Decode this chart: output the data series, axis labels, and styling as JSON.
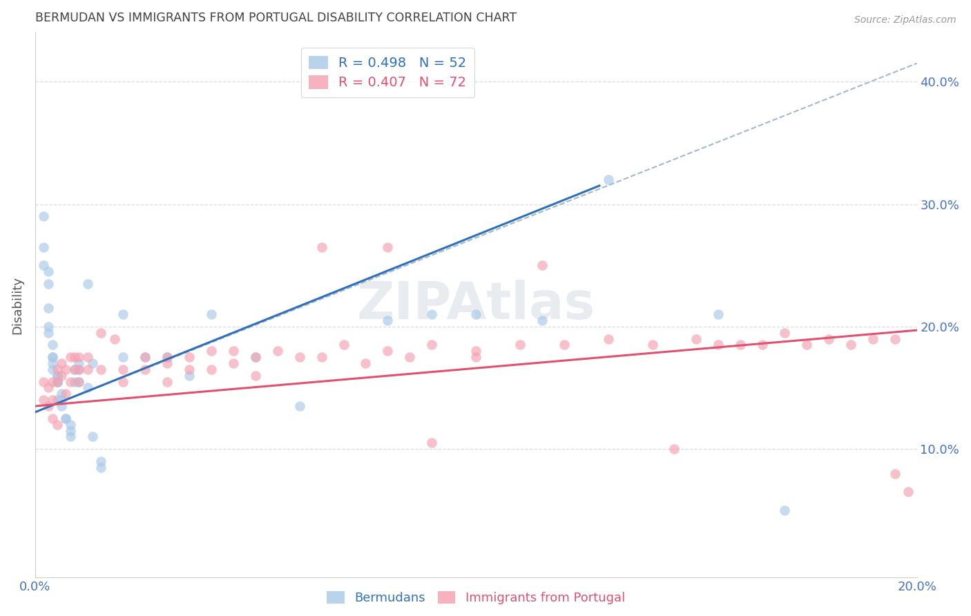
{
  "title": "BERMUDAN VS IMMIGRANTS FROM PORTUGAL DISABILITY CORRELATION CHART",
  "source": "Source: ZipAtlas.com",
  "ylabel": "Disability",
  "x_min": 0.0,
  "x_max": 0.2,
  "y_min": -0.005,
  "y_max": 0.44,
  "y_ticks": [
    0.1,
    0.2,
    0.3,
    0.4
  ],
  "y_tick_labels": [
    "10.0%",
    "20.0%",
    "30.0%",
    "40.0%"
  ],
  "x_ticks": [
    0.0,
    0.04,
    0.08,
    0.12,
    0.16,
    0.2
  ],
  "x_tick_labels": [
    "0.0%",
    "",
    "",
    "",
    "",
    "20.0%"
  ],
  "blue_color": "#a8c8e8",
  "pink_color": "#f4a0b0",
  "blue_line_color": "#3070b8",
  "pink_line_color": "#e05070",
  "dashed_line_color": "#a0b8d0",
  "grid_color": "#d8dde8",
  "title_color": "#404040",
  "tick_color": "#4472c4",
  "blue_scatter_x": [
    0.002,
    0.002,
    0.002,
    0.003,
    0.003,
    0.003,
    0.003,
    0.003,
    0.004,
    0.004,
    0.004,
    0.004,
    0.004,
    0.005,
    0.005,
    0.005,
    0.005,
    0.005,
    0.006,
    0.006,
    0.006,
    0.007,
    0.007,
    0.008,
    0.008,
    0.008,
    0.009,
    0.009,
    0.01,
    0.01,
    0.01,
    0.012,
    0.012,
    0.013,
    0.013,
    0.015,
    0.015,
    0.02,
    0.02,
    0.025,
    0.03,
    0.035,
    0.04,
    0.05,
    0.06,
    0.08,
    0.09,
    0.1,
    0.115,
    0.13,
    0.155,
    0.17
  ],
  "blue_scatter_y": [
    0.29,
    0.265,
    0.25,
    0.245,
    0.235,
    0.215,
    0.2,
    0.195,
    0.185,
    0.175,
    0.175,
    0.17,
    0.165,
    0.16,
    0.16,
    0.155,
    0.155,
    0.14,
    0.145,
    0.14,
    0.135,
    0.125,
    0.125,
    0.12,
    0.115,
    0.11,
    0.165,
    0.155,
    0.17,
    0.165,
    0.155,
    0.235,
    0.15,
    0.17,
    0.11,
    0.09,
    0.085,
    0.175,
    0.21,
    0.175,
    0.175,
    0.16,
    0.21,
    0.175,
    0.135,
    0.205,
    0.21,
    0.21,
    0.205,
    0.32,
    0.21,
    0.05
  ],
  "pink_scatter_x": [
    0.002,
    0.002,
    0.003,
    0.003,
    0.004,
    0.004,
    0.004,
    0.005,
    0.005,
    0.005,
    0.006,
    0.006,
    0.007,
    0.007,
    0.008,
    0.008,
    0.009,
    0.009,
    0.01,
    0.01,
    0.01,
    0.012,
    0.012,
    0.015,
    0.015,
    0.018,
    0.02,
    0.02,
    0.025,
    0.025,
    0.03,
    0.03,
    0.03,
    0.035,
    0.035,
    0.04,
    0.04,
    0.045,
    0.045,
    0.05,
    0.05,
    0.055,
    0.06,
    0.065,
    0.065,
    0.07,
    0.075,
    0.08,
    0.08,
    0.085,
    0.09,
    0.09,
    0.1,
    0.1,
    0.11,
    0.115,
    0.12,
    0.13,
    0.14,
    0.145,
    0.15,
    0.155,
    0.16,
    0.165,
    0.17,
    0.175,
    0.18,
    0.185,
    0.19,
    0.195,
    0.195,
    0.198
  ],
  "pink_scatter_y": [
    0.155,
    0.14,
    0.15,
    0.135,
    0.155,
    0.14,
    0.125,
    0.165,
    0.155,
    0.12,
    0.17,
    0.16,
    0.165,
    0.145,
    0.175,
    0.155,
    0.175,
    0.165,
    0.175,
    0.165,
    0.155,
    0.175,
    0.165,
    0.195,
    0.165,
    0.19,
    0.165,
    0.155,
    0.175,
    0.165,
    0.175,
    0.17,
    0.155,
    0.175,
    0.165,
    0.18,
    0.165,
    0.18,
    0.17,
    0.175,
    0.16,
    0.18,
    0.175,
    0.265,
    0.175,
    0.185,
    0.17,
    0.18,
    0.265,
    0.175,
    0.185,
    0.105,
    0.18,
    0.175,
    0.185,
    0.25,
    0.185,
    0.19,
    0.185,
    0.1,
    0.19,
    0.185,
    0.185,
    0.185,
    0.195,
    0.185,
    0.19,
    0.185,
    0.19,
    0.19,
    0.08,
    0.065
  ],
  "blue_line_x": [
    0.0,
    0.128
  ],
  "blue_line_y": [
    0.13,
    0.315
  ],
  "dashed_line_x": [
    0.0,
    0.2
  ],
  "dashed_line_y": [
    0.13,
    0.415
  ],
  "pink_line_x": [
    0.0,
    0.2
  ],
  "pink_line_y": [
    0.135,
    0.197
  ]
}
